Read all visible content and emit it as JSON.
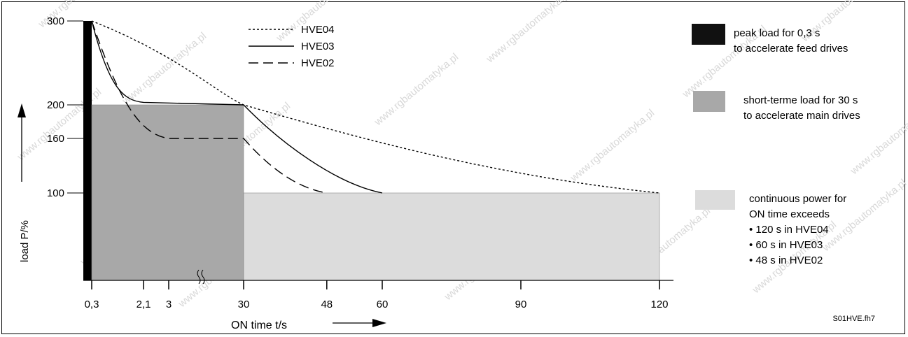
{
  "chart_data": {
    "type": "area",
    "xlabel": "ON time  t/s",
    "ylabel": "load P/%",
    "y_ticks": [
      300,
      200,
      160,
      100
    ],
    "x_ticks": [
      {
        "value": 0.3,
        "label": "0,3"
      },
      {
        "value": 2.1,
        "label": "2,1"
      },
      {
        "value": 3,
        "label": "3"
      },
      {
        "value": 30,
        "label": "30"
      },
      {
        "value": 48,
        "label": "48"
      },
      {
        "value": 60,
        "label": "60"
      },
      {
        "value": 90,
        "label": "90"
      },
      {
        "value": 120,
        "label": "120"
      }
    ],
    "x_axis_break": "between 3 and 30",
    "ylim": [
      0,
      300
    ],
    "series": [
      {
        "name": "HVE04",
        "style": "dotted",
        "points": [
          [
            0.3,
            300
          ],
          [
            30,
            200
          ],
          [
            60,
            155
          ],
          [
            90,
            120
          ],
          [
            120,
            100
          ]
        ]
      },
      {
        "name": "HVE03",
        "style": "solid",
        "points": [
          [
            0.3,
            300
          ],
          [
            2.1,
            205
          ],
          [
            30,
            200
          ],
          [
            48,
            125
          ],
          [
            60,
            100
          ]
        ]
      },
      {
        "name": "HVE02",
        "style": "dashed",
        "points": [
          [
            0.3,
            300
          ],
          [
            2.1,
            175
          ],
          [
            3,
            160
          ],
          [
            30,
            160
          ],
          [
            48,
            100
          ]
        ]
      }
    ],
    "regions": [
      {
        "name": "peak load",
        "x": [
          0,
          0.3
        ],
        "y": 300,
        "color": "#000000"
      },
      {
        "name": "short-term load",
        "x": [
          0.3,
          30
        ],
        "y": 200,
        "color": "#a8a8a8"
      },
      {
        "name": "continuous power",
        "x": [
          30,
          120
        ],
        "y": 100,
        "color": "#dcdcdc"
      }
    ]
  },
  "legend": [
    {
      "name": "HVE04",
      "style": "dotted"
    },
    {
      "name": "HVE03",
      "style": "solid"
    },
    {
      "name": "HVE02",
      "style": "dashed"
    }
  ],
  "regions_legend": {
    "peak": {
      "lines": [
        "peak load for 0,3 s",
        "to accelerate feed drives"
      ],
      "color": "#111111"
    },
    "short": {
      "lines": [
        "short-terme load for 30 s",
        "to accelerate main drives"
      ],
      "color": "#a8a8a8"
    },
    "continuous": {
      "lines": [
        "continuous power for",
        "ON time exceeds",
        "• 120 s in HVE04",
        "•  60 s in HVE03",
        "•  48 s in HVE02"
      ],
      "color": "#dcdcdc"
    }
  },
  "figure_id": "S01HVE.fh7",
  "watermark": "www.rgbautomatyka.pl"
}
